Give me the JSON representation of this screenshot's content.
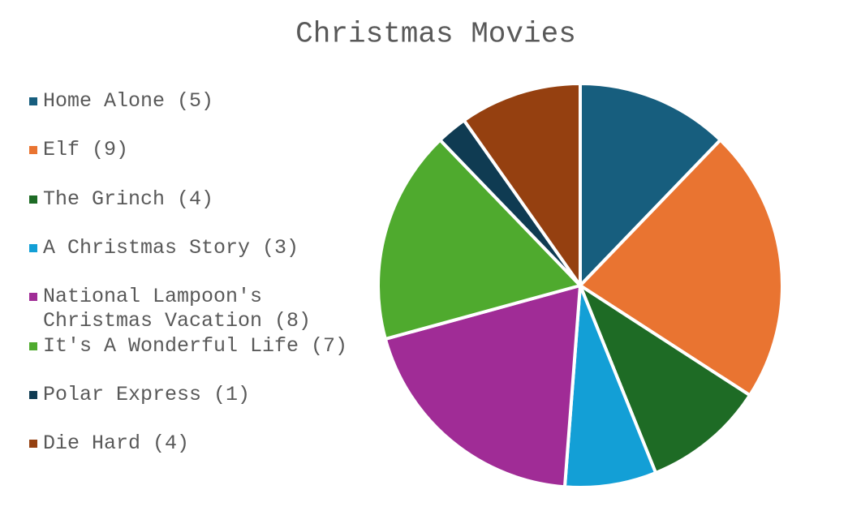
{
  "chart_data": {
    "type": "pie",
    "title": "Christmas Movies",
    "categories": [
      "Home Alone (5)",
      "Elf (9)",
      "The Grinch (4)",
      "A Christmas Story (3)",
      "National Lampoon's Christmas Vacation (8)",
      "It's A Wonderful Life (7)",
      "Polar Express (1)",
      "Die Hard (4)"
    ],
    "values": [
      5,
      9,
      4,
      3,
      8,
      7,
      1,
      4
    ],
    "colors": [
      "#175e7e",
      "#e97431",
      "#1e6b25",
      "#139fd6",
      "#a02c96",
      "#4faa2e",
      "#0f3b52",
      "#954010"
    ],
    "legend": "left"
  }
}
